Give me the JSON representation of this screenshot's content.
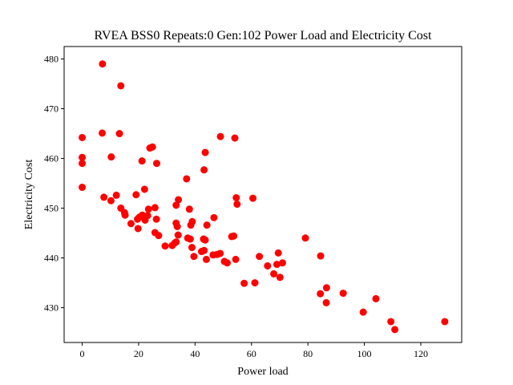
{
  "chart_data": {
    "type": "scatter",
    "title": "RVEA BSS0 Repeats:0 Gen:102 Power Load and Electricity Cost",
    "xlabel": "Power load",
    "ylabel": "Electricity Cost",
    "xlim": [
      -6.4,
      134.5
    ],
    "ylim": [
      423.0,
      482.5
    ],
    "xticks": [
      0,
      20,
      40,
      60,
      80,
      100,
      120
    ],
    "yticks": [
      430,
      440,
      450,
      460,
      470,
      480
    ],
    "grid": false,
    "color": "#ff0000",
    "points": [
      [
        7.2,
        479.0
      ],
      [
        13.7,
        474.6
      ],
      [
        0.0,
        464.2
      ],
      [
        7.1,
        465.1
      ],
      [
        13.2,
        465.0
      ],
      [
        49.0,
        464.4
      ],
      [
        54.1,
        464.1
      ],
      [
        0.0,
        460.2
      ],
      [
        0.0,
        459.0
      ],
      [
        10.3,
        460.3
      ],
      [
        24.0,
        462.1
      ],
      [
        24.9,
        462.3
      ],
      [
        43.6,
        461.2
      ],
      [
        21.2,
        459.5
      ],
      [
        26.4,
        459.0
      ],
      [
        43.2,
        457.7
      ],
      [
        37.0,
        455.9
      ],
      [
        0.0,
        454.2
      ],
      [
        22.1,
        453.8
      ],
      [
        7.7,
        452.2
      ],
      [
        12.1,
        452.6
      ],
      [
        19.1,
        452.7
      ],
      [
        10.2,
        451.5
      ],
      [
        34.1,
        451.7
      ],
      [
        33.3,
        450.6
      ],
      [
        54.6,
        452.1
      ],
      [
        54.9,
        450.8
      ],
      [
        60.5,
        452.0
      ],
      [
        13.7,
        450.0
      ],
      [
        15.0,
        449.1
      ],
      [
        15.2,
        448.6
      ],
      [
        23.5,
        449.8
      ],
      [
        25.8,
        450.1
      ],
      [
        38.0,
        449.8
      ],
      [
        20.3,
        448.2
      ],
      [
        21.3,
        448.6
      ],
      [
        19.6,
        447.8
      ],
      [
        22.3,
        447.6
      ],
      [
        23.2,
        448.5
      ],
      [
        26.3,
        447.8
      ],
      [
        17.3,
        446.9
      ],
      [
        19.8,
        445.9
      ],
      [
        33.3,
        447.0
      ],
      [
        33.7,
        446.3
      ],
      [
        38.5,
        446.6
      ],
      [
        39.0,
        447.3
      ],
      [
        44.2,
        446.6
      ],
      [
        46.7,
        448.1
      ],
      [
        25.8,
        445.1
      ],
      [
        27.1,
        444.5
      ],
      [
        34.0,
        444.6
      ],
      [
        37.4,
        444.0
      ],
      [
        38.3,
        443.8
      ],
      [
        43.0,
        443.8
      ],
      [
        43.6,
        443.6
      ],
      [
        53.0,
        444.3
      ],
      [
        53.7,
        444.4
      ],
      [
        79.1,
        444.0
      ],
      [
        29.4,
        442.4
      ],
      [
        31.9,
        442.5
      ],
      [
        32.8,
        443.0
      ],
      [
        33.3,
        443.2
      ],
      [
        38.9,
        442.1
      ],
      [
        42.3,
        441.3
      ],
      [
        43.2,
        441.5
      ],
      [
        39.6,
        440.3
      ],
      [
        44.0,
        439.7
      ],
      [
        46.4,
        440.6
      ],
      [
        47.8,
        440.7
      ],
      [
        48.9,
        440.9
      ],
      [
        50.4,
        439.3
      ],
      [
        51.4,
        439.0
      ],
      [
        54.4,
        439.7
      ],
      [
        62.8,
        440.3
      ],
      [
        69.5,
        441.0
      ],
      [
        71.0,
        439.0
      ],
      [
        84.5,
        440.4
      ],
      [
        65.7,
        438.4
      ],
      [
        69.0,
        438.7
      ],
      [
        57.4,
        434.9
      ],
      [
        61.2,
        435.0
      ],
      [
        67.9,
        436.8
      ],
      [
        70.1,
        436.1
      ],
      [
        84.4,
        432.8
      ],
      [
        86.6,
        434.0
      ],
      [
        86.5,
        431.0
      ],
      [
        92.5,
        432.9
      ],
      [
        99.6,
        429.1
      ],
      [
        104.1,
        431.8
      ],
      [
        109.4,
        427.2
      ],
      [
        110.8,
        425.6
      ],
      [
        128.5,
        427.2
      ]
    ]
  }
}
